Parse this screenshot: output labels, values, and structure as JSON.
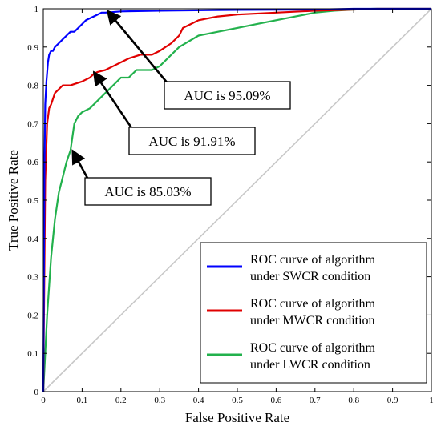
{
  "chart_data": {
    "type": "line",
    "title": "",
    "xlabel": "False Positive Rate",
    "ylabel": "True Positive Rate",
    "xlim": [
      0,
      1
    ],
    "ylim": [
      0,
      1
    ],
    "x_ticks": [
      "0",
      "0.1",
      "0.2",
      "0.3",
      "0.4",
      "0.5",
      "0.6",
      "0.7",
      "0.8",
      "0.9",
      "1"
    ],
    "y_ticks": [
      "0",
      "0.1",
      "0.2",
      "0.3",
      "0.4",
      "0.5",
      "0.6",
      "0.7",
      "0.8",
      "0.9",
      "1"
    ],
    "grid": false,
    "legend_position": "bottom-right",
    "series": [
      {
        "name": "ROC curve of algorithm under SWCR condition",
        "legend_lines": [
          "ROC curve of algorithm",
          "under SWCR condition"
        ],
        "color": "#0000ff",
        "x": [
          0,
          0.003,
          0.005,
          0.008,
          0.012,
          0.015,
          0.02,
          0.025,
          0.03,
          0.04,
          0.05,
          0.06,
          0.07,
          0.08,
          0.09,
          0.1,
          0.11,
          0.12,
          0.13,
          0.14,
          0.15,
          0.16,
          0.2,
          0.3,
          0.5,
          0.7,
          0.8,
          1
        ],
        "y": [
          0,
          0.6,
          0.75,
          0.81,
          0.86,
          0.88,
          0.89,
          0.89,
          0.9,
          0.91,
          0.92,
          0.93,
          0.94,
          0.94,
          0.95,
          0.96,
          0.97,
          0.975,
          0.98,
          0.985,
          0.99,
          0.99,
          0.993,
          0.995,
          0.997,
          0.998,
          1,
          1
        ]
      },
      {
        "name": "ROC curve of algorithm under MWCR condition",
        "legend_lines": [
          "ROC curve of algorithm",
          "under MWCR condition"
        ],
        "color": "#e00000",
        "x": [
          0,
          0.005,
          0.01,
          0.015,
          0.02,
          0.03,
          0.04,
          0.05,
          0.07,
          0.1,
          0.12,
          0.13,
          0.14,
          0.16,
          0.18,
          0.2,
          0.22,
          0.25,
          0.28,
          0.3,
          0.33,
          0.35,
          0.36,
          0.38,
          0.4,
          0.45,
          0.5,
          0.6,
          0.7,
          0.8,
          0.86,
          1
        ],
        "y": [
          0,
          0.55,
          0.7,
          0.74,
          0.75,
          0.78,
          0.79,
          0.8,
          0.8,
          0.81,
          0.82,
          0.83,
          0.835,
          0.84,
          0.85,
          0.86,
          0.87,
          0.88,
          0.88,
          0.89,
          0.91,
          0.93,
          0.95,
          0.96,
          0.97,
          0.98,
          0.985,
          0.99,
          0.995,
          0.998,
          1,
          1
        ]
      },
      {
        "name": "ROC curve of algorithm under LWCR condition",
        "legend_lines": [
          "ROC curve of algorithm",
          "under LWCR condition"
        ],
        "color": "#22b14c",
        "x": [
          0,
          0.01,
          0.02,
          0.03,
          0.04,
          0.05,
          0.06,
          0.07,
          0.08,
          0.09,
          0.1,
          0.12,
          0.14,
          0.16,
          0.18,
          0.2,
          0.22,
          0.24,
          0.26,
          0.28,
          0.3,
          0.32,
          0.35,
          0.4,
          0.45,
          0.5,
          0.55,
          0.6,
          0.65,
          0.7,
          0.75,
          0.8,
          0.85,
          0.9,
          1
        ],
        "y": [
          0,
          0.2,
          0.35,
          0.45,
          0.52,
          0.56,
          0.6,
          0.63,
          0.7,
          0.72,
          0.73,
          0.74,
          0.76,
          0.78,
          0.8,
          0.82,
          0.82,
          0.84,
          0.84,
          0.84,
          0.85,
          0.87,
          0.9,
          0.93,
          0.94,
          0.95,
          0.96,
          0.97,
          0.98,
          0.99,
          0.995,
          0.998,
          1,
          1,
          1
        ]
      }
    ],
    "reference_line": {
      "color": "#c8c8c8",
      "x": [
        0,
        1
      ],
      "y": [
        0,
        1
      ]
    },
    "annotations": [
      {
        "text": "AUC is 95.09%",
        "target": [
          0.165,
          0.995
        ]
      },
      {
        "text": "AUC is 91.91%",
        "target": [
          0.13,
          0.835
        ]
      },
      {
        "text": "AUC is 85.03%",
        "target": [
          0.075,
          0.63
        ]
      }
    ]
  }
}
